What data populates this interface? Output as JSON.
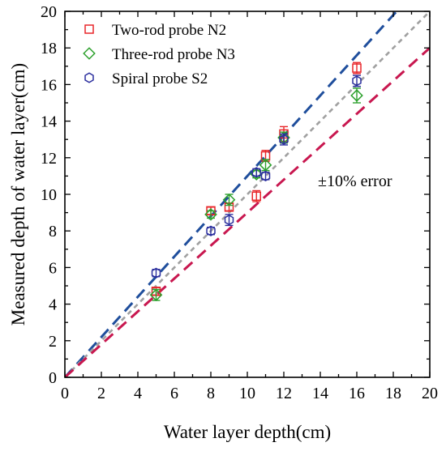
{
  "chart_data": {
    "type": "scatter",
    "xlabel": "Water layer depth(cm)",
    "ylabel": "Measured depth of water layer(cm)",
    "xlim": [
      0,
      20
    ],
    "ylim": [
      0,
      20
    ],
    "xticks": [
      "0",
      "2",
      "4",
      "6",
      "8",
      "10",
      "12",
      "14",
      "16",
      "18",
      "20"
    ],
    "yticks": [
      "0",
      "2",
      "4",
      "6",
      "8",
      "10",
      "12",
      "14",
      "16",
      "18",
      "20"
    ],
    "grid": false,
    "legend_position": "top-left",
    "annotation": "±10% error",
    "series": [
      {
        "name": "Two-rod probe N2",
        "marker": "square",
        "color": "#e8262a",
        "points": [
          {
            "x": 5,
            "y": 4.7,
            "err": 0.2
          },
          {
            "x": 8,
            "y": 9.1,
            "err": 0.2
          },
          {
            "x": 9,
            "y": 9.3,
            "err": 0.2
          },
          {
            "x": 10.5,
            "y": 9.9,
            "err": 0.3
          },
          {
            "x": 11,
            "y": 12.1,
            "err": 0.3
          },
          {
            "x": 12,
            "y": 13.3,
            "err": 0.4
          },
          {
            "x": 16,
            "y": 16.9,
            "err": 0.3
          }
        ]
      },
      {
        "name": "Three-rod probe N3",
        "marker": "diamond",
        "color": "#2ca02c",
        "points": [
          {
            "x": 5,
            "y": 4.5,
            "err": 0.3
          },
          {
            "x": 8,
            "y": 8.9,
            "err": 0.2
          },
          {
            "x": 9,
            "y": 9.7,
            "err": 0.3
          },
          {
            "x": 10.5,
            "y": 11.1,
            "err": 0.2
          },
          {
            "x": 11,
            "y": 11.6,
            "err": 0.3
          },
          {
            "x": 12,
            "y": 13.1,
            "err": 0.3
          },
          {
            "x": 16,
            "y": 15.4,
            "err": 0.4
          }
        ]
      },
      {
        "name": "Spiral probe S2",
        "marker": "hexagon",
        "color": "#2b2f9e",
        "points": [
          {
            "x": 5,
            "y": 5.7,
            "err": 0.2
          },
          {
            "x": 8,
            "y": 8.0,
            "err": 0.2
          },
          {
            "x": 9,
            "y": 8.6,
            "err": 0.3
          },
          {
            "x": 10.5,
            "y": 11.2,
            "err": 0.2
          },
          {
            "x": 11,
            "y": 11.0,
            "err": 0.2
          },
          {
            "x": 12,
            "y": 13.0,
            "err": 0.3
          },
          {
            "x": 16,
            "y": 16.2,
            "err": 0.3
          }
        ]
      }
    ],
    "reference_lines": [
      {
        "label": "+10%",
        "slope": 1.1,
        "color": "#1f4e9c",
        "dash": "long"
      },
      {
        "label": "1:1",
        "slope": 1.0,
        "color": "#a0a0a0",
        "dash": "short"
      },
      {
        "label": "-10%",
        "slope": 0.9,
        "color": "#c8174f",
        "dash": "long"
      }
    ]
  }
}
